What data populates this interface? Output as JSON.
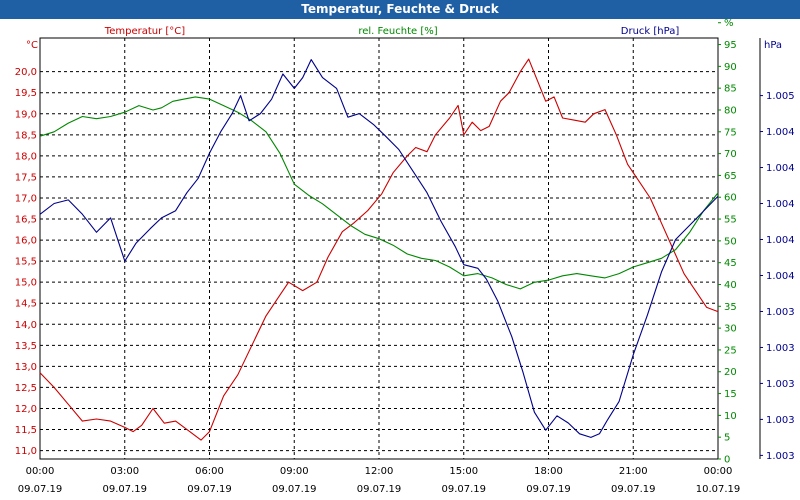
{
  "window": {
    "title": "Temperatur, Feuchte & Druck"
  },
  "chart_data": {
    "type": "line",
    "title": "Temperatur, Feuchte & Druck",
    "legend": [
      "Temperatur [°C]",
      "rel. Feuchte [%]",
      "Druck [hPa]"
    ],
    "colors": {
      "temperature": "#cc0000",
      "humidity": "#008800",
      "pressure": "#00008b",
      "title_bar": "#1f5fa3"
    },
    "axes": {
      "temperature": {
        "unit": "°C",
        "range": [
          10.8,
          20.8
        ],
        "ticks": [
          "11,0",
          "11,5",
          "12,0",
          "12,5",
          "13,0",
          "13,5",
          "14,0",
          "14,5",
          "15,0",
          "15,5",
          "16,0",
          "16,5",
          "17,0",
          "17,5",
          "18,0",
          "18,5",
          "19,0",
          "19,5",
          "20,0"
        ]
      },
      "humidity": {
        "unit": "%",
        "range": [
          0,
          96.5
        ],
        "ticks": [
          "0",
          "5",
          "10",
          "15",
          "20",
          "25",
          "30",
          "35",
          "40",
          "45",
          "50",
          "55",
          "60",
          "65",
          "70",
          "75",
          "80",
          "85",
          "90",
          "95",
          "%"
        ]
      },
      "pressure": {
        "unit": "hPa",
        "range": [
          0,
          11.7
        ],
        "ticks": [
          "1.003",
          "1.003",
          "1.003",
          "1.003",
          "1.003",
          "1.004",
          "1.004",
          "1.004",
          "1.004",
          "1.004",
          "1.005"
        ]
      },
      "x": {
        "range": [
          0,
          24
        ],
        "tick_times": [
          "00:00",
          "03:00",
          "06:00",
          "09:00",
          "12:00",
          "15:00",
          "18:00",
          "21:00",
          "00:00"
        ],
        "tick_dates": [
          "09.07.19",
          "09.07.19",
          "09.07.19",
          "09.07.19",
          "09.07.19",
          "09.07.19",
          "09.07.19",
          "09.07.19",
          "10.07.19"
        ]
      }
    },
    "grid": true,
    "legend_position": "top",
    "series": [
      {
        "name": "Temperatur [°C]",
        "axis": "temperature",
        "points": [
          [
            0,
            12.85
          ],
          [
            0.5,
            12.5
          ],
          [
            1,
            12.1
          ],
          [
            1.5,
            11.7
          ],
          [
            2,
            11.75
          ],
          [
            2.5,
            11.7
          ],
          [
            3,
            11.55
          ],
          [
            3.3,
            11.45
          ],
          [
            3.6,
            11.6
          ],
          [
            4,
            12.0
          ],
          [
            4.4,
            11.65
          ],
          [
            4.8,
            11.7
          ],
          [
            5.3,
            11.45
          ],
          [
            5.7,
            11.25
          ],
          [
            6,
            11.45
          ],
          [
            6.5,
            12.3
          ],
          [
            7,
            12.8
          ],
          [
            7.5,
            13.5
          ],
          [
            8,
            14.2
          ],
          [
            8.5,
            14.7
          ],
          [
            8.8,
            15.0
          ],
          [
            9.3,
            14.8
          ],
          [
            9.8,
            15.0
          ],
          [
            10.2,
            15.6
          ],
          [
            10.7,
            16.2
          ],
          [
            11.1,
            16.4
          ],
          [
            11.6,
            16.7
          ],
          [
            12.1,
            17.1
          ],
          [
            12.5,
            17.6
          ],
          [
            13,
            18.0
          ],
          [
            13.3,
            18.2
          ],
          [
            13.7,
            18.1
          ],
          [
            14,
            18.5
          ],
          [
            14.5,
            18.9
          ],
          [
            14.8,
            19.2
          ],
          [
            15,
            18.5
          ],
          [
            15.3,
            18.8
          ],
          [
            15.6,
            18.6
          ],
          [
            15.9,
            18.7
          ],
          [
            16.3,
            19.3
          ],
          [
            16.6,
            19.5
          ],
          [
            17,
            20.0
          ],
          [
            17.3,
            20.3
          ],
          [
            17.6,
            19.8
          ],
          [
            17.9,
            19.3
          ],
          [
            18.2,
            19.4
          ],
          [
            18.5,
            18.9
          ],
          [
            18.9,
            18.85
          ],
          [
            19.3,
            18.8
          ],
          [
            19.6,
            19.0
          ],
          [
            20,
            19.1
          ],
          [
            20.4,
            18.5
          ],
          [
            20.8,
            17.8
          ],
          [
            21.2,
            17.4
          ],
          [
            21.6,
            17.0
          ],
          [
            22,
            16.4
          ],
          [
            22.4,
            15.8
          ],
          [
            22.8,
            15.2
          ],
          [
            23.2,
            14.8
          ],
          [
            23.6,
            14.4
          ],
          [
            24,
            14.3
          ]
        ]
      },
      {
        "name": "rel. Feuchte [%]",
        "axis": "humidity",
        "points": [
          [
            0,
            74
          ],
          [
            0.5,
            75
          ],
          [
            1,
            77
          ],
          [
            1.5,
            78.5
          ],
          [
            2,
            78
          ],
          [
            2.5,
            78.5
          ],
          [
            3,
            79.5
          ],
          [
            3.5,
            81
          ],
          [
            4,
            80
          ],
          [
            4.3,
            80.5
          ],
          [
            4.7,
            82
          ],
          [
            5.1,
            82.5
          ],
          [
            5.5,
            83
          ],
          [
            6,
            82.5
          ],
          [
            6.5,
            81
          ],
          [
            7,
            79.5
          ],
          [
            7.5,
            77.5
          ],
          [
            8,
            75
          ],
          [
            8.5,
            70
          ],
          [
            9,
            63
          ],
          [
            9.5,
            60.5
          ],
          [
            10,
            58.5
          ],
          [
            10.5,
            56
          ],
          [
            11,
            53.5
          ],
          [
            11.5,
            51.5
          ],
          [
            12,
            50.5
          ],
          [
            12.5,
            49
          ],
          [
            13,
            47
          ],
          [
            13.5,
            46
          ],
          [
            14,
            45.5
          ],
          [
            14.5,
            44
          ],
          [
            15,
            42
          ],
          [
            15.5,
            42.5
          ],
          [
            16,
            41.5
          ],
          [
            16.5,
            40
          ],
          [
            17,
            39
          ],
          [
            17.5,
            40.5
          ],
          [
            18,
            41
          ],
          [
            18.5,
            42
          ],
          [
            19,
            42.5
          ],
          [
            19.5,
            42
          ],
          [
            20,
            41.5
          ],
          [
            20.5,
            42.5
          ],
          [
            21,
            44
          ],
          [
            21.5,
            45
          ],
          [
            22,
            46
          ],
          [
            22.5,
            48
          ],
          [
            23,
            52
          ],
          [
            23.5,
            57
          ],
          [
            24,
            61
          ]
        ]
      },
      {
        "name": "Druck [hPa]",
        "axis": "pressure",
        "points": [
          [
            0,
            6.8
          ],
          [
            0.5,
            7.1
          ],
          [
            1,
            7.2
          ],
          [
            1.5,
            6.8
          ],
          [
            2,
            6.3
          ],
          [
            2.5,
            6.7
          ],
          [
            3,
            5.5
          ],
          [
            3.4,
            6.0
          ],
          [
            3.9,
            6.4
          ],
          [
            4.3,
            6.7
          ],
          [
            4.8,
            6.9
          ],
          [
            5.2,
            7.4
          ],
          [
            5.6,
            7.8
          ],
          [
            6,
            8.5
          ],
          [
            6.4,
            9.1
          ],
          [
            6.8,
            9.6
          ],
          [
            7.1,
            10.1
          ],
          [
            7.4,
            9.4
          ],
          [
            7.8,
            9.6
          ],
          [
            8.2,
            10.0
          ],
          [
            8.6,
            10.7
          ],
          [
            9.0,
            10.3
          ],
          [
            9.3,
            10.6
          ],
          [
            9.6,
            11.1
          ],
          [
            10,
            10.6
          ],
          [
            10.5,
            10.3
          ],
          [
            10.9,
            9.5
          ],
          [
            11.3,
            9.6
          ],
          [
            11.8,
            9.3
          ],
          [
            12.2,
            9.0
          ],
          [
            12.7,
            8.6
          ],
          [
            13.2,
            8.0
          ],
          [
            13.7,
            7.4
          ],
          [
            14.2,
            6.6
          ],
          [
            14.7,
            5.9
          ],
          [
            15,
            5.4
          ],
          [
            15.5,
            5.3
          ],
          [
            15.8,
            5.0
          ],
          [
            16.2,
            4.4
          ],
          [
            16.7,
            3.4
          ],
          [
            17.1,
            2.4
          ],
          [
            17.5,
            1.3
          ],
          [
            17.9,
            0.8
          ],
          [
            18.3,
            1.2
          ],
          [
            18.7,
            1.0
          ],
          [
            19.1,
            0.7
          ],
          [
            19.5,
            0.6
          ],
          [
            19.8,
            0.7
          ],
          [
            20.1,
            1.1
          ],
          [
            20.5,
            1.6
          ],
          [
            21.0,
            2.9
          ],
          [
            21.5,
            4.0
          ],
          [
            22,
            5.2
          ],
          [
            22.5,
            6.1
          ],
          [
            23,
            6.5
          ],
          [
            23.5,
            6.9
          ],
          [
            24,
            7.3
          ]
        ]
      }
    ]
  }
}
